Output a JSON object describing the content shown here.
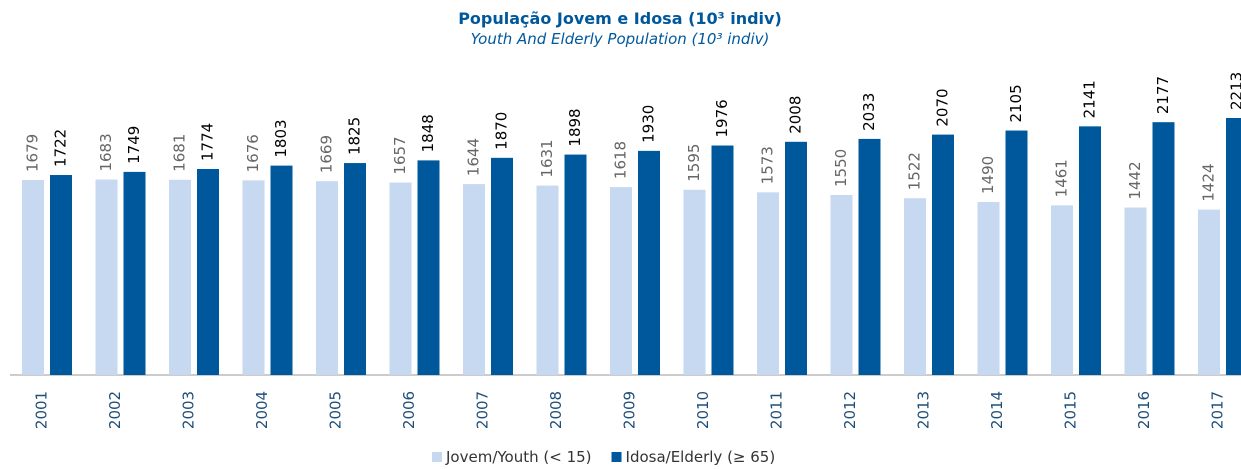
{
  "chart_data": {
    "type": "bar",
    "title": "População Jovem e Idosa (10³ indiv)",
    "subtitle": "Youth And Elderly Population (10³ indiv)",
    "categories": [
      "2001",
      "2002",
      "2003",
      "2004",
      "2005",
      "2006",
      "2007",
      "2008",
      "2009",
      "2010",
      "2011",
      "2012",
      "2013",
      "2014",
      "2015",
      "2016",
      "2017"
    ],
    "series": [
      {
        "name": "Jovem/Youth (< 15)",
        "color": "#c6d9f1",
        "values": [
          1679,
          1683,
          1681,
          1676,
          1669,
          1657,
          1644,
          1631,
          1618,
          1595,
          1573,
          1550,
          1522,
          1490,
          1461,
          1442,
          1424
        ]
      },
      {
        "name": "Idosa/Elderly (≥ 65)",
        "color": "#00589c",
        "values": [
          1722,
          1749,
          1774,
          1803,
          1825,
          1848,
          1870,
          1898,
          1930,
          1976,
          2008,
          2033,
          2070,
          2105,
          2141,
          2177,
          2213
        ]
      }
    ]
  }
}
